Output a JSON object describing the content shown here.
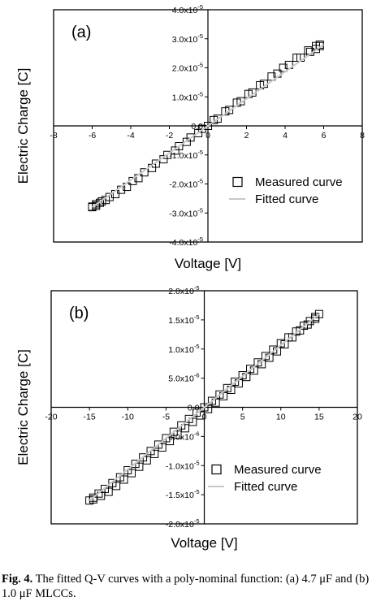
{
  "chart_data": [
    {
      "type": "scatter",
      "panel_label": "(a)",
      "xlabel": "Voltage [V]",
      "ylabel": "Electric Charge [C]",
      "xlim": [
        -8,
        8
      ],
      "ylim": [
        -4e-05,
        4e-05
      ],
      "x_ticks": [
        "-8",
        "-6",
        "-4",
        "-2",
        "0",
        "2",
        "4",
        "6",
        "8"
      ],
      "y_ticks": [
        "-4.0x10",
        "-3.0x10",
        "-2.0x10",
        "-1.0x10",
        "0.0",
        "1.0x10",
        "2.0x10",
        "3.0x10",
        "4.0x10"
      ],
      "y_tick_exponent": "-5",
      "series": [
        {
          "name": "Measured curve",
          "marker": "open-square",
          "x": [
            -6.0,
            -5.8,
            -5.6,
            -5.3,
            -4.8,
            -4.2,
            -3.6,
            -2.9,
            -2.3,
            -1.7,
            -1.1,
            -0.5,
            0.0,
            0.5,
            1.1,
            1.7,
            2.3,
            2.9,
            3.6,
            4.2,
            4.8,
            5.3,
            5.6,
            5.8,
            5.8,
            5.6,
            5.2,
            4.6,
            3.9,
            3.3,
            2.7,
            2.1,
            1.5,
            0.9,
            0.3,
            -0.3,
            -0.9,
            -1.5,
            -2.1,
            -2.7,
            -3.3,
            -3.9,
            -4.5,
            -5.1,
            -5.5,
            -5.8,
            -6.0
          ],
          "y": [
            -2.8e-05,
            -2.75e-05,
            -2.65e-05,
            -2.55e-05,
            -2.35e-05,
            -2.1e-05,
            -1.8e-05,
            -1.45e-05,
            -1.15e-05,
            -8.5e-06,
            -5.5e-06,
            -2.5e-06,
            0.0,
            2.5e-06,
            5.5e-06,
            8.5e-06,
            1.15e-05,
            1.45e-05,
            1.8e-05,
            2.1e-05,
            2.35e-05,
            2.55e-05,
            2.65e-05,
            2.75e-05,
            2.8e-05,
            2.75e-05,
            2.6e-05,
            2.35e-05,
            2e-05,
            1.7e-05,
            1.4e-05,
            1.1e-05,
            8e-06,
            5e-06,
            2e-06,
            -1e-06,
            -4e-06,
            -7e-06,
            -1e-05,
            -1.3e-05,
            -1.6e-05,
            -1.9e-05,
            -2.2e-05,
            -2.45e-05,
            -2.6e-05,
            -2.7e-05,
            -2.78e-05
          ]
        },
        {
          "name": "Fitted curve",
          "line": "light-gray",
          "x": [
            -6.0,
            6.0
          ],
          "y": [
            -2.8e-05,
            2.8e-05
          ]
        }
      ]
    },
    {
      "type": "scatter",
      "panel_label": "(b)",
      "xlabel": "Voltage [V]",
      "ylabel": "Electric Charge [C]",
      "xlim": [
        -20,
        20
      ],
      "ylim": [
        -2e-05,
        2e-05
      ],
      "x_ticks": [
        "-20",
        "-15",
        "-10",
        "-5",
        "0",
        "5",
        "10",
        "15",
        "20"
      ],
      "y_ticks": [
        "-2.0x10",
        "-1.5x10",
        "-1.0x10",
        "-5.0x10",
        "0.0",
        "5.0x10",
        "1.0x10",
        "1.5x10",
        "2.0x10"
      ],
      "y_tick_exponents": [
        "-5",
        "-5",
        "-5",
        "-6",
        "",
        "-6",
        "-5",
        "-5",
        "-5"
      ],
      "series": [
        {
          "name": "Measured curve",
          "marker": "open-square",
          "x": [
            -15.0,
            -14.5,
            -13.8,
            -13.0,
            -12.0,
            -11.0,
            -10.0,
            -9.0,
            -8.0,
            -7.0,
            -6.0,
            -5.0,
            -4.0,
            -3.0,
            -2.0,
            -1.0,
            0.0,
            1.0,
            2.0,
            3.0,
            4.0,
            5.0,
            6.0,
            7.0,
            8.0,
            9.0,
            10.0,
            11.0,
            12.0,
            13.0,
            13.8,
            14.5,
            15.0,
            14.5,
            13.5,
            12.5,
            11.5,
            10.5,
            9.5,
            8.5,
            7.5,
            6.5,
            5.5,
            4.5,
            3.5,
            2.5,
            1.5,
            0.5,
            -0.5,
            -1.5,
            -2.5,
            -3.5,
            -4.5,
            -5.5,
            -6.5,
            -7.5,
            -8.5,
            -9.5,
            -10.5,
            -11.5,
            -12.5,
            -13.5,
            -14.5
          ],
          "y": [
            -1.6e-05,
            -1.55e-05,
            -1.48e-05,
            -1.4e-05,
            -1.3e-05,
            -1.2e-05,
            -1.08e-05,
            -9.7e-06,
            -8.6e-06,
            -7.5e-06,
            -6.4e-06,
            -5.3e-06,
            -4.2e-06,
            -3.1e-06,
            -2e-06,
            -9e-07,
            0.0,
            1.1e-06,
            2.2e-06,
            3.3e-06,
            4.4e-06,
            5.5e-06,
            6.6e-06,
            7.7e-06,
            8.8e-06,
            9.9e-06,
            1.1e-05,
            1.2e-05,
            1.3e-05,
            1.4e-05,
            1.48e-05,
            1.55e-05,
            1.6e-05,
            1.52e-05,
            1.42e-05,
            1.32e-05,
            1.2e-05,
            1.08e-05,
            9.6e-06,
            8.5e-06,
            7.4e-06,
            6.3e-06,
            5.2e-06,
            4.1e-06,
            3e-06,
            1.9e-06,
            8e-07,
            -3e-07,
            -1.4e-06,
            -2.5e-06,
            -3.6e-06,
            -4.7e-06,
            -5.8e-06,
            -6.9e-06,
            -8e-06,
            -9.1e-06,
            -1.02e-05,
            -1.13e-05,
            -1.24e-05,
            -1.35e-05,
            -1.45e-05,
            -1.52e-05,
            -1.58e-05
          ]
        },
        {
          "name": "Fitted curve",
          "line": "light-gray",
          "x": [
            -15.0,
            15.0
          ],
          "y": [
            -1.6e-05,
            1.6e-05
          ]
        }
      ]
    }
  ],
  "caption": {
    "label": "Fig. 4.",
    "text": " The fitted Q-V curves with a poly-nominal function: (a) 4.7 μF and (b) 1.0 μF MLCCs."
  },
  "colors": {
    "axis": "#000000",
    "marker": "#000000",
    "fit": "#c8c8c8",
    "background": "#ffffff"
  }
}
